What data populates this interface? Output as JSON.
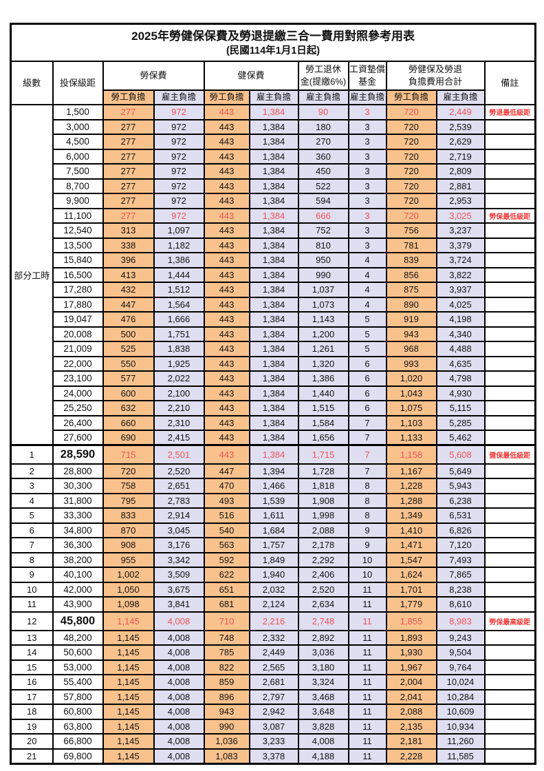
{
  "title": "2025年勞健保保費及勞退提繳三合一費用對照參考用表",
  "subtitle": "(民國114年1月1日起)",
  "columns": {
    "level": "級數",
    "bracket": "投保級距",
    "labor_insurance": "勞保費",
    "health_insurance": "健保費",
    "pension_line1": "勞工退休",
    "pension_line2": "金(提繳6%)",
    "wage_fund_line1": "工資墊償",
    "wage_fund_line2": "基金",
    "total_line1": "勞健保及勞退",
    "total_line2": "負擔費用合計",
    "remark": "備註",
    "employee_burden": "勞工負擔",
    "employer_burden": "雇主負擔"
  },
  "part_time_label": "部分工時",
  "part_time_rowspan": 23,
  "colors": {
    "employee_bg": "#F9C28D",
    "employer_bg": "#E0DEF1",
    "highlight_text": "#EE5454",
    "remark_text": "#F43B3B",
    "border": "#000000"
  },
  "rows": [
    {
      "lv": "",
      "br": "1,500",
      "le": "277",
      "ler": "972",
      "he": "443",
      "her": "1,384",
      "pn": "90",
      "wf": "3",
      "te": "720",
      "ter": "2,449",
      "rm": "勞退最低級距",
      "hl": true
    },
    {
      "lv": "",
      "br": "3,000",
      "le": "277",
      "ler": "972",
      "he": "443",
      "her": "1,384",
      "pn": "180",
      "wf": "3",
      "te": "720",
      "ter": "2,539",
      "rm": ""
    },
    {
      "lv": "",
      "br": "4,500",
      "le": "277",
      "ler": "972",
      "he": "443",
      "her": "1,384",
      "pn": "270",
      "wf": "3",
      "te": "720",
      "ter": "2,629",
      "rm": ""
    },
    {
      "lv": "",
      "br": "6,000",
      "le": "277",
      "ler": "972",
      "he": "443",
      "her": "1,384",
      "pn": "360",
      "wf": "3",
      "te": "720",
      "ter": "2,719",
      "rm": ""
    },
    {
      "lv": "",
      "br": "7,500",
      "le": "277",
      "ler": "972",
      "he": "443",
      "her": "1,384",
      "pn": "450",
      "wf": "3",
      "te": "720",
      "ter": "2,809",
      "rm": ""
    },
    {
      "lv": "",
      "br": "8,700",
      "le": "277",
      "ler": "972",
      "he": "443",
      "her": "1,384",
      "pn": "522",
      "wf": "3",
      "te": "720",
      "ter": "2,881",
      "rm": ""
    },
    {
      "lv": "",
      "br": "9,900",
      "le": "277",
      "ler": "972",
      "he": "443",
      "her": "1,384",
      "pn": "594",
      "wf": "3",
      "te": "720",
      "ter": "2,953",
      "rm": ""
    },
    {
      "lv": "",
      "br": "11,100",
      "le": "277",
      "ler": "972",
      "he": "443",
      "her": "1,384",
      "pn": "666",
      "wf": "3",
      "te": "720",
      "ter": "3,025",
      "rm": "勞保最低級距",
      "hl": true
    },
    {
      "lv": "",
      "br": "12,540",
      "le": "313",
      "ler": "1,097",
      "he": "443",
      "her": "1,384",
      "pn": "752",
      "wf": "3",
      "te": "756",
      "ter": "3,237",
      "rm": ""
    },
    {
      "lv": "",
      "br": "13,500",
      "le": "338",
      "ler": "1,182",
      "he": "443",
      "her": "1,384",
      "pn": "810",
      "wf": "3",
      "te": "781",
      "ter": "3,379",
      "rm": ""
    },
    {
      "lv": "",
      "br": "15,840",
      "le": "396",
      "ler": "1,386",
      "he": "443",
      "her": "1,384",
      "pn": "950",
      "wf": "4",
      "te": "839",
      "ter": "3,724",
      "rm": ""
    },
    {
      "lv": "",
      "br": "16,500",
      "le": "413",
      "ler": "1,444",
      "he": "443",
      "her": "1,384",
      "pn": "990",
      "wf": "4",
      "te": "856",
      "ter": "3,822",
      "rm": ""
    },
    {
      "lv": "",
      "br": "17,280",
      "le": "432",
      "ler": "1,512",
      "he": "443",
      "her": "1,384",
      "pn": "1,037",
      "wf": "4",
      "te": "875",
      "ter": "3,937",
      "rm": ""
    },
    {
      "lv": "",
      "br": "17,880",
      "le": "447",
      "ler": "1,564",
      "he": "443",
      "her": "1,384",
      "pn": "1,073",
      "wf": "4",
      "te": "890",
      "ter": "4,025",
      "rm": ""
    },
    {
      "lv": "",
      "br": "19,047",
      "le": "476",
      "ler": "1,666",
      "he": "443",
      "her": "1,384",
      "pn": "1,143",
      "wf": "5",
      "te": "919",
      "ter": "4,198",
      "rm": ""
    },
    {
      "lv": "",
      "br": "20,008",
      "le": "500",
      "ler": "1,751",
      "he": "443",
      "her": "1,384",
      "pn": "1,200",
      "wf": "5",
      "te": "943",
      "ter": "4,340",
      "rm": ""
    },
    {
      "lv": "",
      "br": "21,009",
      "le": "525",
      "ler": "1,838",
      "he": "443",
      "her": "1,384",
      "pn": "1,261",
      "wf": "5",
      "te": "968",
      "ter": "4,488",
      "rm": ""
    },
    {
      "lv": "",
      "br": "22,000",
      "le": "550",
      "ler": "1,925",
      "he": "443",
      "her": "1,384",
      "pn": "1,320",
      "wf": "6",
      "te": "993",
      "ter": "4,635",
      "rm": ""
    },
    {
      "lv": "",
      "br": "23,100",
      "le": "577",
      "ler": "2,022",
      "he": "443",
      "her": "1,384",
      "pn": "1,386",
      "wf": "6",
      "te": "1,020",
      "ter": "4,798",
      "rm": ""
    },
    {
      "lv": "",
      "br": "24,000",
      "le": "600",
      "ler": "2,100",
      "he": "443",
      "her": "1,384",
      "pn": "1,440",
      "wf": "6",
      "te": "1,043",
      "ter": "4,930",
      "rm": ""
    },
    {
      "lv": "",
      "br": "25,250",
      "le": "632",
      "ler": "2,210",
      "he": "443",
      "her": "1,384",
      "pn": "1,515",
      "wf": "6",
      "te": "1,075",
      "ter": "5,115",
      "rm": ""
    },
    {
      "lv": "",
      "br": "26,400",
      "le": "660",
      "ler": "2,310",
      "he": "443",
      "her": "1,384",
      "pn": "1,584",
      "wf": "7",
      "te": "1,103",
      "ter": "5,285",
      "rm": ""
    },
    {
      "lv": "",
      "br": "27,600",
      "le": "690",
      "ler": "2,415",
      "he": "443",
      "her": "1,384",
      "pn": "1,656",
      "wf": "7",
      "te": "1,133",
      "ter": "5,462",
      "rm": ""
    },
    {
      "lv": "1",
      "br": "28,590",
      "le": "715",
      "ler": "2,501",
      "he": "443",
      "her": "1,384",
      "pn": "1,715",
      "wf": "7",
      "te": "1,158",
      "ter": "5,608",
      "rm": "健保最低級距",
      "hl": true,
      "big": true
    },
    {
      "lv": "2",
      "br": "28,800",
      "le": "720",
      "ler": "2,520",
      "he": "447",
      "her": "1,394",
      "pn": "1,728",
      "wf": "7",
      "te": "1,167",
      "ter": "5,649",
      "rm": ""
    },
    {
      "lv": "3",
      "br": "30,300",
      "le": "758",
      "ler": "2,651",
      "he": "470",
      "her": "1,466",
      "pn": "1,818",
      "wf": "8",
      "te": "1,228",
      "ter": "5,943",
      "rm": ""
    },
    {
      "lv": "4",
      "br": "31,800",
      "le": "795",
      "ler": "2,783",
      "he": "493",
      "her": "1,539",
      "pn": "1,908",
      "wf": "8",
      "te": "1,288",
      "ter": "6,238",
      "rm": ""
    },
    {
      "lv": "5",
      "br": "33,300",
      "le": "833",
      "ler": "2,914",
      "he": "516",
      "her": "1,611",
      "pn": "1,998",
      "wf": "8",
      "te": "1,349",
      "ter": "6,531",
      "rm": ""
    },
    {
      "lv": "6",
      "br": "34,800",
      "le": "870",
      "ler": "3,045",
      "he": "540",
      "her": "1,684",
      "pn": "2,088",
      "wf": "9",
      "te": "1,410",
      "ter": "6,826",
      "rm": ""
    },
    {
      "lv": "7",
      "br": "36,300",
      "le": "908",
      "ler": "3,176",
      "he": "563",
      "her": "1,757",
      "pn": "2,178",
      "wf": "9",
      "te": "1,471",
      "ter": "7,120",
      "rm": ""
    },
    {
      "lv": "8",
      "br": "38,200",
      "le": "955",
      "ler": "3,342",
      "he": "592",
      "her": "1,849",
      "pn": "2,292",
      "wf": "10",
      "te": "1,547",
      "ter": "7,493",
      "rm": ""
    },
    {
      "lv": "9",
      "br": "40,100",
      "le": "1,002",
      "ler": "3,509",
      "he": "622",
      "her": "1,940",
      "pn": "2,406",
      "wf": "10",
      "te": "1,624",
      "ter": "7,865",
      "rm": ""
    },
    {
      "lv": "10",
      "br": "42,000",
      "le": "1,050",
      "ler": "3,675",
      "he": "651",
      "her": "2,032",
      "pn": "2,520",
      "wf": "11",
      "te": "1,701",
      "ter": "8,238",
      "rm": ""
    },
    {
      "lv": "11",
      "br": "43,900",
      "le": "1,098",
      "ler": "3,841",
      "he": "681",
      "her": "2,124",
      "pn": "2,634",
      "wf": "11",
      "te": "1,779",
      "ter": "8,610",
      "rm": ""
    },
    {
      "lv": "12",
      "br": "45,800",
      "le": "1,145",
      "ler": "4,008",
      "he": "710",
      "her": "2,216",
      "pn": "2,748",
      "wf": "11",
      "te": "1,855",
      "ter": "8,983",
      "rm": "勞保最高級距",
      "hl": true,
      "big": true
    },
    {
      "lv": "13",
      "br": "48,200",
      "le": "1,145",
      "ler": "4,008",
      "he": "748",
      "her": "2,332",
      "pn": "2,892",
      "wf": "11",
      "te": "1,893",
      "ter": "9,243",
      "rm": ""
    },
    {
      "lv": "14",
      "br": "50,600",
      "le": "1,145",
      "ler": "4,008",
      "he": "785",
      "her": "2,449",
      "pn": "3,036",
      "wf": "11",
      "te": "1,930",
      "ter": "9,504",
      "rm": ""
    },
    {
      "lv": "15",
      "br": "53,000",
      "le": "1,145",
      "ler": "4,008",
      "he": "822",
      "her": "2,565",
      "pn": "3,180",
      "wf": "11",
      "te": "1,967",
      "ter": "9,764",
      "rm": ""
    },
    {
      "lv": "16",
      "br": "55,400",
      "le": "1,145",
      "ler": "4,008",
      "he": "859",
      "her": "2,681",
      "pn": "3,324",
      "wf": "11",
      "te": "2,004",
      "ter": "10,024",
      "rm": ""
    },
    {
      "lv": "17",
      "br": "57,800",
      "le": "1,145",
      "ler": "4,008",
      "he": "896",
      "her": "2,797",
      "pn": "3,468",
      "wf": "11",
      "te": "2,041",
      "ter": "10,284",
      "rm": ""
    },
    {
      "lv": "18",
      "br": "60,800",
      "le": "1,145",
      "ler": "4,008",
      "he": "943",
      "her": "2,942",
      "pn": "3,648",
      "wf": "11",
      "te": "2,088",
      "ter": "10,609",
      "rm": ""
    },
    {
      "lv": "19",
      "br": "63,800",
      "le": "1,145",
      "ler": "4,008",
      "he": "990",
      "her": "3,087",
      "pn": "3,828",
      "wf": "11",
      "te": "2,135",
      "ter": "10,934",
      "rm": ""
    },
    {
      "lv": "20",
      "br": "66,800",
      "le": "1,145",
      "ler": "4,008",
      "he": "1,036",
      "her": "3,233",
      "pn": "4,008",
      "wf": "11",
      "te": "2,181",
      "ter": "11,260",
      "rm": ""
    },
    {
      "lv": "21",
      "br": "69,800",
      "le": "1,145",
      "ler": "4,008",
      "he": "1,083",
      "her": "3,378",
      "pn": "4,188",
      "wf": "11",
      "te": "2,228",
      "ter": "11,585",
      "rm": ""
    }
  ]
}
